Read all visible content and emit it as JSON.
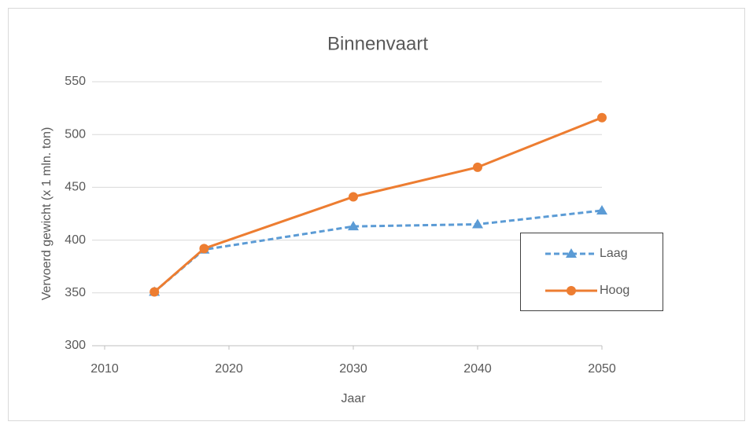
{
  "chart_data": {
    "type": "line",
    "title": "Binnenvaart",
    "x_label": "Jaar",
    "y_label": "Vervoerd gewicht (x 1 mln. ton)",
    "x": [
      2014,
      2018,
      2030,
      2040,
      2050
    ],
    "series": [
      {
        "name": "Laag",
        "color": "#5b9bd5",
        "dashed": true,
        "marker": "triangle",
        "values": [
          351,
          391,
          413,
          415,
          428
        ]
      },
      {
        "name": "Hoog",
        "color": "#ed7d31",
        "dashed": false,
        "marker": "circle",
        "values": [
          351,
          392,
          441,
          469,
          516
        ]
      }
    ],
    "xlim": [
      2010,
      2050
    ],
    "xticks": [
      2010,
      2020,
      2030,
      2040,
      2050
    ],
    "ylim": [
      300,
      550
    ],
    "yticks": [
      300,
      350,
      400,
      450,
      500,
      550
    ],
    "grid": true,
    "legend": "right"
  }
}
